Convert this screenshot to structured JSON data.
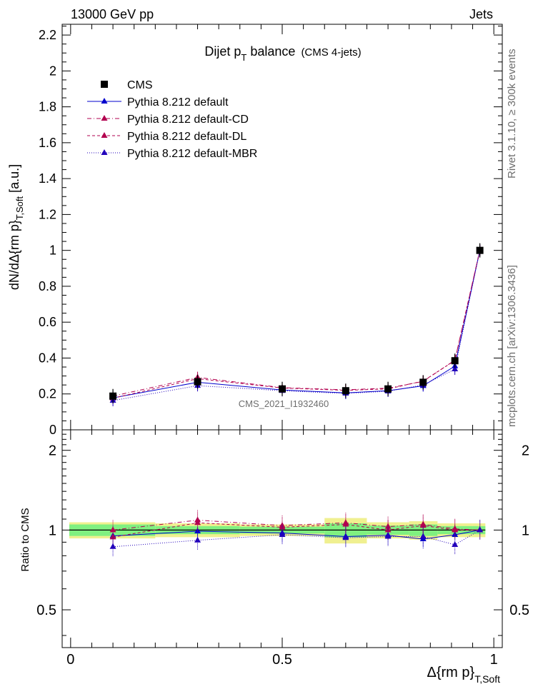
{
  "header": {
    "energy_label": "13000 GeV pp",
    "process_label": "Jets",
    "side_label_top": "Rivet 3.1.10, ≥ 300k events",
    "side_label_bottom": "mcplots.cern.ch [arXiv:1306.3436]",
    "watermark": "CMS_2021_I1932460"
  },
  "chart_data": [
    {
      "type": "line",
      "title": "Dijet p_T balance",
      "title_main": "Dijet p",
      "title_sub": "T",
      "title_rest": " balance",
      "subtitle": "(CMS 4-jets)",
      "ylabel": "dN/dΔ{rm p}_{T,Soft} [a.u.]",
      "ylabel_main": "dN/dΔ{rm p}",
      "ylabel_sub": "T,Soft",
      "ylabel_unit": " [a.u.]",
      "ylim": [
        0,
        2.26
      ],
      "xlim": [
        -0.02,
        1.02
      ],
      "yticks": [
        "0",
        "0.2",
        "0.4",
        "0.6",
        "0.8",
        "1",
        "1.2",
        "1.4",
        "1.6",
        "1.8",
        "2",
        "2.2"
      ],
      "legend_position": "top-left",
      "data_series": {
        "name": "CMS",
        "color": "#000000",
        "x": [
          0.1,
          0.3,
          0.5,
          0.65,
          0.75,
          0.833,
          0.908,
          0.967
        ],
        "y": [
          0.188,
          0.268,
          0.228,
          0.218,
          0.228,
          0.265,
          0.385,
          1.0
        ]
      },
      "series": [
        {
          "name": "Pythia 8.212 default",
          "color": "#0000cc",
          "dash": "solid",
          "y": [
            0.178,
            0.265,
            0.222,
            0.206,
            0.218,
            0.245,
            0.355,
            1.0
          ]
        },
        {
          "name": "Pythia 8.212 default-CD",
          "color": "#b2004f",
          "dash": "dashdot",
          "y": [
            0.188,
            0.292,
            0.235,
            0.223,
            0.232,
            0.27,
            0.388,
            1.0
          ]
        },
        {
          "name": "Pythia 8.212 default-DL",
          "color": "#b2004f",
          "dash": "dash",
          "y": [
            0.176,
            0.285,
            0.233,
            0.22,
            0.228,
            0.272,
            0.386,
            1.0
          ]
        },
        {
          "name": "Pythia 8.212 default-MBR",
          "color": "#2200bb",
          "dash": "dot",
          "y": [
            0.163,
            0.246,
            0.218,
            0.203,
            0.215,
            0.25,
            0.338,
            1.0
          ]
        }
      ]
    },
    {
      "type": "line",
      "title": "",
      "ylabel": "Ratio to CMS",
      "xlabel": "Δ{rm p}_{T,Soft}",
      "xlabel_main": "Δ{rm p}",
      "xlabel_sub": "T,Soft",
      "ylim": [
        0.36,
        2.39
      ],
      "xlim": [
        -0.02,
        1.02
      ],
      "yticks": [
        "0.5",
        "1",
        "2"
      ],
      "xticks": [
        "0",
        "0.5",
        "1"
      ],
      "ratio_series": [
        {
          "name": "Pythia 8.212 default",
          "y": [
            0.95,
            0.99,
            0.975,
            0.945,
            0.955,
            0.925,
            0.96,
            1.0
          ]
        },
        {
          "name": "Pythia 8.212 default-CD",
          "y": [
            1.0,
            1.09,
            1.04,
            1.065,
            1.03,
            1.05,
            1.01,
            1.0
          ]
        },
        {
          "name": "Pythia 8.212 default-DL",
          "y": [
            0.94,
            1.065,
            1.025,
            1.05,
            1.0,
            1.04,
            1.0,
            1.0
          ]
        },
        {
          "name": "Pythia 8.212 default-MBR",
          "y": [
            0.865,
            0.915,
            0.96,
            0.935,
            0.945,
            0.945,
            0.88,
            1.0
          ]
        }
      ],
      "uncertainty_band": {
        "x_edges": [
          -0.02,
          0.2,
          0.4,
          0.6,
          0.7,
          0.8,
          0.867,
          0.95,
          0.98
        ],
        "inner": [
          0.05,
          0.035,
          0.03,
          0.06,
          0.04,
          0.05,
          0.035,
          0.035
        ],
        "outer": [
          0.07,
          0.06,
          0.05,
          0.11,
          0.07,
          0.08,
          0.06,
          0.06
        ],
        "inner_color": "#80f080",
        "outer_color": "#f0f090"
      }
    }
  ]
}
